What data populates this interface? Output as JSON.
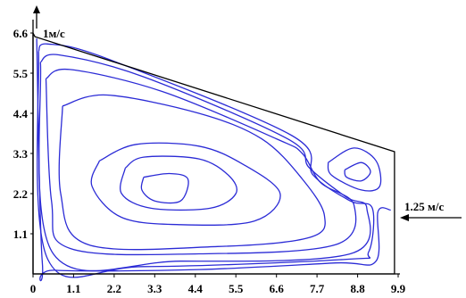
{
  "chart_data": {
    "type": "line",
    "title": "",
    "xlabel": "",
    "ylabel": "",
    "xlim": [
      0,
      9.9
    ],
    "ylim": [
      0,
      6.6
    ],
    "grid": false,
    "x_ticks": [
      "0",
      "1.1",
      "2.2",
      "3.3",
      "4.4",
      "5.5",
      "6.6",
      "7.7",
      "8.8",
      "9.9"
    ],
    "y_ticks": [
      "1.1",
      "2.2",
      "3.3",
      "4.4",
      "5.5",
      "6.6"
    ],
    "boundary": [
      [
        0,
        6.6
      ],
      [
        0,
        0
      ],
      [
        9.8,
        0
      ],
      [
        9.8,
        3.35
      ],
      [
        0.05,
        6.5
      ]
    ],
    "annotations": {
      "inlet_label": "1м/с",
      "outlet_label": "1.25  м/с"
    },
    "colors": {
      "streamline": "#2b2bd6",
      "boundary": "#000000",
      "text": "#000000"
    },
    "streamlines": [
      {
        "name": "",
        "points": [
          [
            0.1,
            6.45
          ],
          [
            0.25,
            0.35
          ],
          [
            0.6,
            0.1
          ],
          [
            4.5,
            0.12
          ],
          [
            8.2,
            0.3
          ],
          [
            9.3,
            0.35
          ],
          [
            9.35,
            1.7
          ],
          [
            9.7,
            1.75
          ]
        ]
      },
      {
        "name": "",
        "points": [
          [
            0.15,
            6.1
          ],
          [
            0.4,
            0.4
          ],
          [
            3.0,
            0.2
          ],
          [
            8.5,
            0.4
          ],
          [
            9.1,
            0.6
          ],
          [
            9.2,
            1.8
          ],
          [
            8.6,
            2.0
          ],
          [
            7.6,
            2.7
          ],
          [
            7.0,
            3.8
          ],
          [
            2.0,
            5.9
          ],
          [
            0.4,
            6.3
          ],
          [
            0.15,
            6.1
          ]
        ]
      },
      {
        "name": "",
        "points": [
          [
            0.2,
            5.8
          ],
          [
            0.55,
            0.55
          ],
          [
            4.0,
            0.35
          ],
          [
            8.6,
            0.55
          ],
          [
            9.05,
            1.8
          ],
          [
            8.5,
            2.1
          ],
          [
            7.5,
            2.9
          ],
          [
            6.9,
            3.7
          ],
          [
            3.0,
            5.4
          ],
          [
            0.7,
            6.0
          ],
          [
            0.2,
            5.8
          ]
        ]
      },
      {
        "name": "",
        "points": [
          [
            0.35,
            5.35
          ],
          [
            0.5,
            2.0
          ],
          [
            1.0,
            0.7
          ],
          [
            4.5,
            0.55
          ],
          [
            8.2,
            0.8
          ],
          [
            8.7,
            1.9
          ],
          [
            7.8,
            2.5
          ],
          [
            7.3,
            3.3
          ],
          [
            6.6,
            3.7
          ],
          [
            3.5,
            5.0
          ],
          [
            1.0,
            5.6
          ],
          [
            0.35,
            5.35
          ]
        ]
      },
      {
        "name": "",
        "points": [
          [
            0.8,
            4.6
          ],
          [
            0.75,
            2.2
          ],
          [
            1.5,
            0.8
          ],
          [
            5.0,
            0.75
          ],
          [
            7.5,
            1.0
          ],
          [
            7.9,
            1.6
          ],
          [
            7.3,
            2.6
          ],
          [
            6.2,
            3.7
          ],
          [
            4.5,
            4.4
          ],
          [
            2.0,
            4.9
          ],
          [
            0.8,
            4.6
          ]
        ]
      },
      {
        "name": "",
        "points": [
          [
            1.8,
            3.1
          ],
          [
            2.8,
            3.55
          ],
          [
            4.5,
            3.5
          ],
          [
            5.7,
            3.0
          ],
          [
            6.7,
            2.2
          ],
          [
            6.0,
            1.45
          ],
          [
            4.0,
            1.35
          ],
          [
            2.4,
            1.55
          ],
          [
            1.6,
            2.4
          ],
          [
            1.8,
            3.1
          ]
        ]
      },
      {
        "name": "",
        "points": [
          [
            2.5,
            2.9
          ],
          [
            3.0,
            3.2
          ],
          [
            4.5,
            3.15
          ],
          [
            5.3,
            2.7
          ],
          [
            5.5,
            2.2
          ],
          [
            4.8,
            1.8
          ],
          [
            3.2,
            1.8
          ],
          [
            2.4,
            2.2
          ],
          [
            2.5,
            2.9
          ]
        ]
      },
      {
        "name": "",
        "points": [
          [
            3.0,
            2.65
          ],
          [
            3.7,
            2.75
          ],
          [
            4.2,
            2.6
          ],
          [
            4.0,
            2.0
          ],
          [
            3.3,
            2.0
          ],
          [
            2.95,
            2.3
          ],
          [
            3.0,
            2.65
          ]
        ]
      },
      {
        "name": "",
        "points": [
          [
            8.0,
            3.05
          ],
          [
            8.7,
            3.45
          ],
          [
            9.3,
            3.1
          ],
          [
            9.4,
            2.4
          ],
          [
            8.9,
            2.3
          ],
          [
            8.1,
            2.7
          ],
          [
            8.0,
            3.05
          ]
        ]
      },
      {
        "name": "",
        "points": [
          [
            8.45,
            2.85
          ],
          [
            8.9,
            3.05
          ],
          [
            9.15,
            2.8
          ],
          [
            8.9,
            2.55
          ],
          [
            8.5,
            2.65
          ],
          [
            8.45,
            2.85
          ]
        ]
      }
    ]
  }
}
